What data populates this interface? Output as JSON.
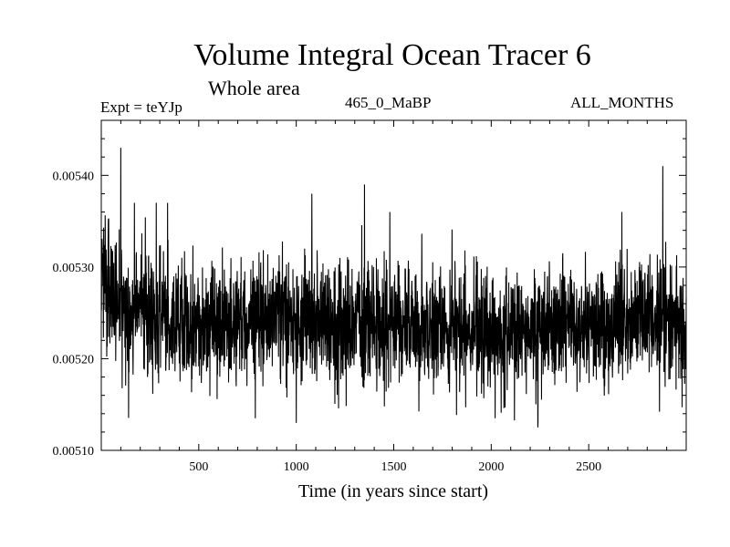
{
  "chart_data": {
    "type": "line",
    "title": "Volume Integral Ocean Tracer 6",
    "subtitle": "Whole area",
    "annotations": {
      "experiment": "Expt = teYJp",
      "run": "465_0_MaBP",
      "months": "ALL_MONTHS"
    },
    "xlabel": "Time (in years since start)",
    "ylabel": "",
    "xlim": [
      0,
      3000
    ],
    "ylim": [
      0.0051,
      0.00546
    ],
    "x_ticks": [
      500,
      1000,
      1500,
      2000,
      2500
    ],
    "x_tick_labels": [
      "500",
      "1000",
      "1500",
      "2000",
      "2500"
    ],
    "y_ticks": [
      0.0051,
      0.0052,
      0.0053,
      0.0054
    ],
    "y_tick_labels": [
      "0.00510",
      "0.00520",
      "0.00530",
      "0.00540"
    ],
    "grid": false,
    "legend": "none",
    "series": [
      {
        "name": "Volume Integral Ocean Tracer 6",
        "color": "#000000",
        "summary": "dense noisy annual series, ~0.00530 at start settling to ~0.00524 mean; range ~0.00513 to ~0.00543",
        "spikes": [
          {
            "x": 100,
            "y": 0.00543
          },
          {
            "x": 170,
            "y": 0.00537
          },
          {
            "x": 340,
            "y": 0.00537
          },
          {
            "x": 790,
            "y": 0.005135
          },
          {
            "x": 1000,
            "y": 0.00513
          },
          {
            "x": 1080,
            "y": 0.00538
          },
          {
            "x": 1350,
            "y": 0.00539
          },
          {
            "x": 1480,
            "y": 0.00536
          },
          {
            "x": 2020,
            "y": 0.005135
          },
          {
            "x": 2240,
            "y": 0.00513
          },
          {
            "x": 2670,
            "y": 0.00536
          },
          {
            "x": 2880,
            "y": 0.00541
          }
        ],
        "baseline": [
          {
            "x": 0,
            "y": 0.0053
          },
          {
            "x": 60,
            "y": 0.00527
          },
          {
            "x": 150,
            "y": 0.00525
          },
          {
            "x": 400,
            "y": 0.00524
          },
          {
            "x": 1000,
            "y": 0.00524
          },
          {
            "x": 1500,
            "y": 0.005242
          },
          {
            "x": 2000,
            "y": 0.00523
          },
          {
            "x": 2500,
            "y": 0.00524
          },
          {
            "x": 2800,
            "y": 0.005245
          },
          {
            "x": 3000,
            "y": 0.00523
          }
        ],
        "noise_sd": 3.3e-05
      }
    ]
  },
  "colors": {
    "background": "#ffffff",
    "foreground": "#000000"
  }
}
